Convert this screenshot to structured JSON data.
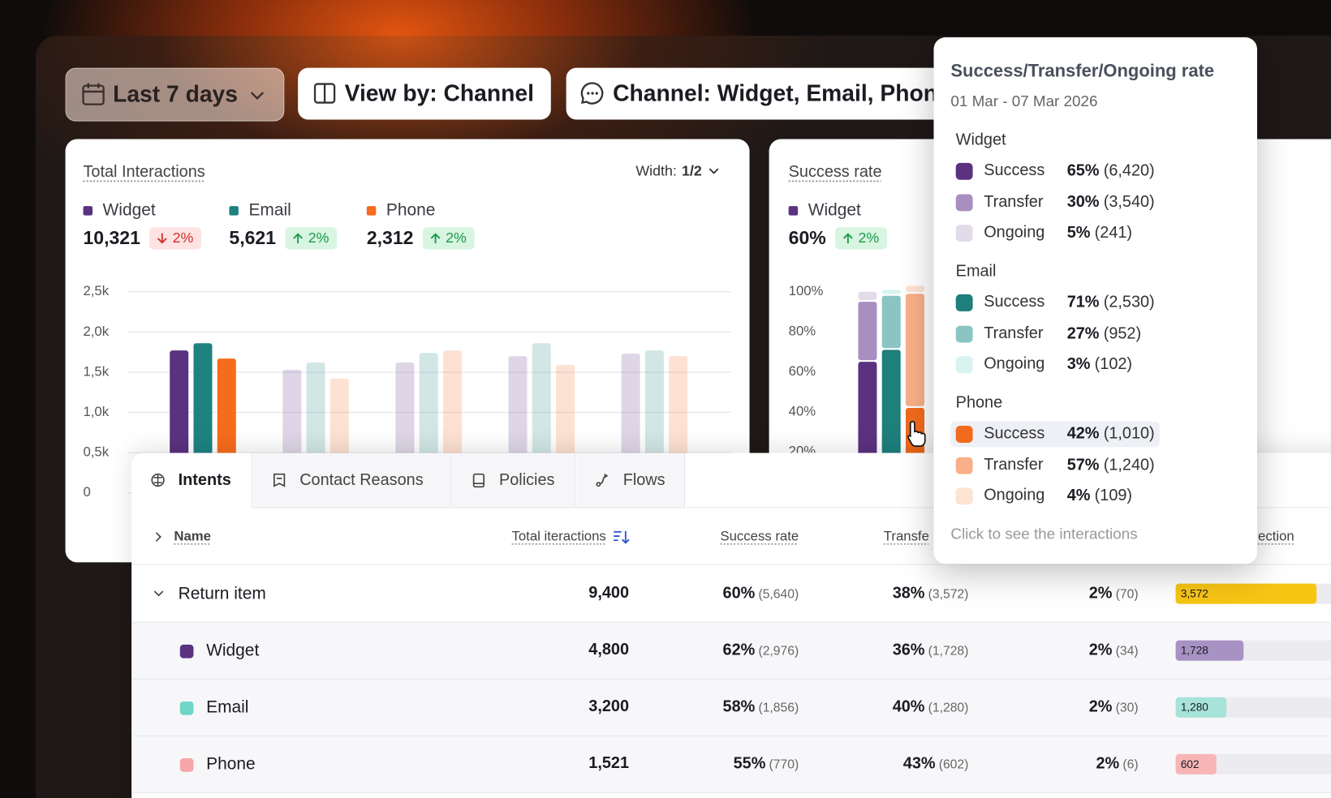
{
  "filters": {
    "date": "Last 7 days",
    "view_by": "View by: Channel",
    "channel": "Channel: Widget, Email, Phon"
  },
  "interactions": {
    "title": "Total Interactions",
    "width_label": "Width:",
    "width_value": "1/2",
    "kpis": [
      {
        "value": "10,321",
        "change": "2%",
        "trend": "down"
      },
      {
        "value": "5,621",
        "change": "2%",
        "trend": "up"
      },
      {
        "value": "2,312",
        "change": "2%",
        "trend": "up"
      }
    ]
  },
  "success": {
    "title": "Success rate",
    "kpis": [
      {
        "value": "60%",
        "change": "2%",
        "trend": "up"
      }
    ]
  },
  "chart_data": [
    {
      "type": "bar",
      "categories": [
        null,
        null,
        null,
        null,
        null
      ],
      "series": [
        {
          "name": "Widget",
          "color": "#5b3280",
          "values": [
            1770,
            1530,
            1620,
            1700,
            1730
          ]
        },
        {
          "name": "Email",
          "color": "#1e8380",
          "values": [
            1860,
            1620,
            1740,
            1860,
            1770
          ]
        },
        {
          "name": "Phone",
          "color": "#f76b1c",
          "values": [
            1670,
            1420,
            1770,
            1590,
            1700
          ]
        }
      ],
      "ylim": [
        0,
        2500
      ],
      "yticks": [
        0,
        {
          "value": 500,
          "label": "0,5k"
        },
        {
          "value": 1000,
          "label": "1,0k"
        },
        {
          "value": 1500,
          "label": "1,5k"
        },
        {
          "value": 2000,
          "label": "2,0k"
        },
        {
          "value": 2500,
          "label": "2,5k"
        }
      ],
      "grid": true,
      "highlighted": 0
    },
    {
      "type": "stacked_bar",
      "categories": [
        null,
        null,
        null
      ],
      "series": [
        {
          "name": "Success",
          "colors": [
            "#5b3280",
            "#1e7f7d",
            "#f26b1d"
          ],
          "values": [
            65,
            71,
            42
          ],
          "value_labels": [
            "65%",
            "71%",
            "42%"
          ],
          "counts": [
            "(6,420)",
            "(2,530)",
            "(1,010)"
          ]
        },
        {
          "name": "Transfer",
          "colors": [
            "#a88fc0",
            "#8bc5c3",
            "#f8b089"
          ],
          "values": [
            30,
            27,
            57
          ],
          "value_labels": [
            "30%",
            "27%",
            "57%"
          ],
          "counts": [
            "(3,540)",
            "(952)",
            "(1,240)"
          ]
        },
        {
          "name": "Ongoing",
          "colors": [
            "#e2dbe9",
            "#d9f3f0",
            "#fde3d3"
          ],
          "values": [
            5,
            3,
            4
          ],
          "value_labels": [
            "5%",
            "3%",
            "4%"
          ],
          "counts": [
            "(241)",
            "(102)",
            "(109)"
          ]
        }
      ],
      "ylim": [
        0,
        100
      ],
      "yticks": [
        {
          "value": 20,
          "label": "20%"
        },
        {
          "value": 40,
          "label": "40%"
        },
        {
          "value": 60,
          "label": "60%"
        },
        {
          "value": 80,
          "label": "80%"
        },
        {
          "value": 100,
          "label": "100%"
        }
      ]
    }
  ],
  "tooltip": {
    "title": "Success/Transfer/Ongoing rate",
    "date": "01 Mar - 07 Mar 2026",
    "footer": "Click to see the interactions",
    "highlighted_group": 2,
    "highlighted_row": 0
  },
  "table": {
    "tabs": [
      "Intents",
      "Contact Reasons",
      "Policies",
      "Flows"
    ],
    "active_tab": 0,
    "columns": [
      "Name",
      "Total iteractions",
      "Success rate",
      "Transfe",
      "ection"
    ],
    "rows": [
      {
        "name": "Return item",
        "total": "9,400",
        "success": "60%",
        "success_count": "(5,640)",
        "transfer": "38%",
        "transfer_count": "(3,572)",
        "ongoing": "2%",
        "ongoing_count": "(70)",
        "bar": 3572,
        "bar_label": "3,572",
        "bar_color": "#f7c514"
      },
      {
        "name": "Widget",
        "dot_color": "#5b3280",
        "total": "4,800",
        "success": "62%",
        "success_count": "(2,976)",
        "transfer": "36%",
        "transfer_count": "(1,728)",
        "ongoing": "2%",
        "ongoing_count": "(34)",
        "bar": 1728,
        "bar_label": "1,728",
        "bar_color": "#a892c4"
      },
      {
        "name": "Email",
        "dot_color": "#6fd6c8",
        "total": "3,200",
        "success": "58%",
        "success_count": "(1,856)",
        "transfer": "40%",
        "transfer_count": "(1,280)",
        "ongoing": "2%",
        "ongoing_count": "(30)",
        "bar": 1280,
        "bar_label": "1,280",
        "bar_color": "#a8e3da"
      },
      {
        "name": "Phone",
        "dot_color": "#f6a6a6",
        "total": "1,521",
        "success": "55%",
        "success_count": "(770)",
        "transfer": "43%",
        "transfer_count": "(602)",
        "ongoing": "2%",
        "ongoing_count": "(6)",
        "bar": 602,
        "bar_label": "602",
        "bar_color": "#f7b5b5"
      }
    ]
  }
}
